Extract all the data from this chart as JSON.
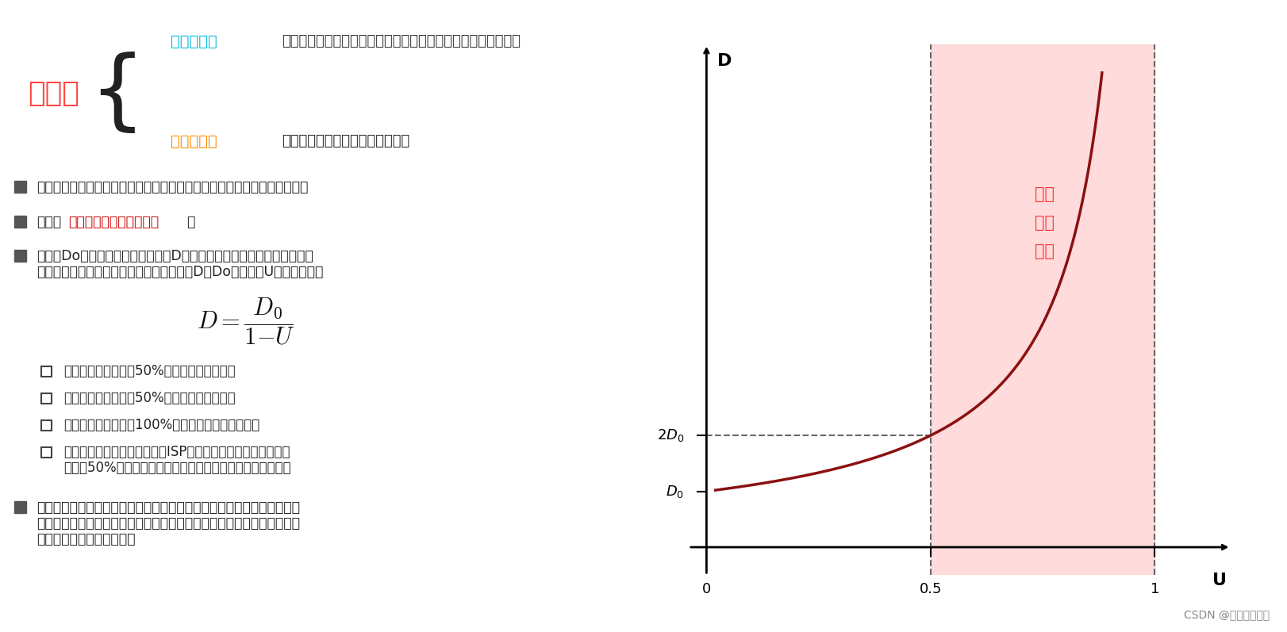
{
  "bg_color": "#ffffff",
  "title_liyonglv": "利用率",
  "title_liyonglv_color": "#FF4444",
  "label_xindao": "信道利用率",
  "label_xindao_color": "#00BBDD",
  "label_wangluo": "网络利用率",
  "label_wangluo_color": "#FF8C00",
  "desc_xindao": "用来表示某信道有百分之几的时间是被利用的（有数据通过）。",
  "desc_wangluo": "全网络的信道利用率的加权平均。",
  "bullet_color": "#555555",
  "bullet1": "根据排队论，当某信道的利用率增大时，该信道引起的时延也会迅速增加；",
  "bullet2_prefix": "因此，",
  "bullet2_highlight": "信道利用率并非越高越好",
  "bullet2_highlight_color": "#CC0000",
  "bullet2_suffix": "；",
  "bullet3_line1": "如果令Do表示网络空闲时的时延，D表示网络当前的时延，那么在适当的",
  "bullet3_line2": "假定条件下，可以用下面的简单公式来表示D、Do和利用率U之间的关系：",
  "check_items": [
    "当网络的利用率达到50%时，时延就要加倍；",
    "当网络的利用率超过50%时，时延急剧增大；",
    "当网络的利用率接近100%时，时延就趋于无穷大；",
    [
      "因此，一些拥有较大主干网的ISP通常会控制它们的信道利用率",
      "不超过50%。如果超过了，就要准备扩容，增大线路的带宽。"
    ]
  ],
  "bullet4_line1": "也不能使信道利用率太低，这会使宝贵的通信资源被白白浪费。应该使用",
  "bullet4_line2": "一些机制，可以根据情况动态调整输入到网络中的通信量，使网络利用率",
  "bullet4_line3": "保持在一个合理的范围内。",
  "watermark": "CSDN @行稳方能走远",
  "graph_shaded_color": "#FFCCCC",
  "graph_shaded_alpha": 0.7,
  "graph_curve_color": "#8B1010",
  "graph_label_color": "#FF3333",
  "graph_label_text": "时延\n急剧\n增大"
}
